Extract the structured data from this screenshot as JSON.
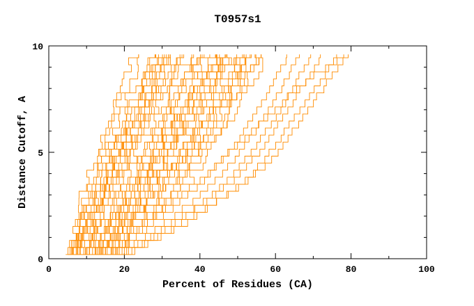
{
  "chart_data": {
    "type": "line",
    "title": "T0957s1",
    "xlabel": "Percent of Residues (CA)",
    "ylabel": "Distance Cutoff, A",
    "xlim": [
      0,
      100
    ],
    "ylim": [
      0,
      10
    ],
    "x_ticks": [
      0,
      20,
      40,
      60,
      80,
      100
    ],
    "x_minor_ticks": [
      10,
      30,
      50,
      70,
      90
    ],
    "y_ticks": [
      0,
      5,
      10
    ],
    "y_minor_ticks": [
      1,
      2,
      3,
      4,
      6,
      7,
      8,
      9
    ],
    "grid": false,
    "legend_position": "none",
    "background": "#ffffff",
    "series_color": "#ff8c00",
    "cutoffs": [
      0.2,
      1,
      2,
      3,
      4,
      5,
      6,
      7,
      8,
      9,
      9.6
    ],
    "series": [
      {
        "x": [
          5,
          6,
          7,
          9,
          11,
          13,
          15,
          17,
          19,
          21,
          23
        ]
      },
      {
        "x": [
          5,
          6,
          8,
          10,
          12,
          14,
          16,
          18,
          20,
          23,
          25
        ]
      },
      {
        "x": [
          6,
          7,
          9,
          11,
          13,
          15,
          17,
          19,
          22,
          25,
          27
        ]
      },
      {
        "x": [
          6,
          8,
          10,
          12,
          14,
          16,
          18,
          21,
          24,
          26,
          28
        ]
      },
      {
        "x": [
          7,
          8,
          10,
          13,
          15,
          17,
          19,
          22,
          25,
          27,
          29
        ]
      },
      {
        "x": [
          7,
          9,
          11,
          13,
          16,
          18,
          20,
          23,
          26,
          28,
          30
        ]
      },
      {
        "x": [
          8,
          9,
          12,
          14,
          16,
          19,
          21,
          24,
          27,
          29,
          31
        ]
      },
      {
        "x": [
          8,
          10,
          12,
          15,
          17,
          19,
          22,
          25,
          28,
          30,
          32
        ]
      },
      {
        "x": [
          6,
          7,
          9,
          12,
          14,
          16,
          19,
          21,
          24,
          27,
          30
        ]
      },
      {
        "x": [
          5,
          7,
          9,
          11,
          14,
          17,
          20,
          23,
          26,
          29,
          31
        ]
      },
      {
        "x": [
          7,
          8,
          11,
          14,
          17,
          20,
          22,
          25,
          28,
          31,
          33
        ]
      },
      {
        "x": [
          6,
          8,
          11,
          13,
          15,
          18,
          21,
          24,
          27,
          30,
          32
        ]
      },
      {
        "x": [
          8,
          10,
          13,
          16,
          18,
          21,
          23,
          26,
          29,
          32,
          34
        ]
      },
      {
        "x": [
          7,
          9,
          12,
          15,
          18,
          21,
          24,
          27,
          30,
          33,
          35
        ]
      },
      {
        "x": [
          9,
          11,
          13,
          16,
          19,
          22,
          25,
          28,
          31,
          34,
          36
        ]
      },
      {
        "x": [
          9,
          11,
          14,
          17,
          20,
          23,
          26,
          29,
          32,
          35,
          37
        ]
      },
      {
        "x": [
          10,
          12,
          15,
          18,
          21,
          24,
          27,
          30,
          33,
          36,
          38
        ]
      },
      {
        "x": [
          10,
          13,
          16,
          19,
          22,
          25,
          28,
          31,
          34,
          37,
          39
        ]
      },
      {
        "x": [
          11,
          13,
          17,
          20,
          23,
          26,
          29,
          32,
          35,
          38,
          40
        ]
      },
      {
        "x": [
          11,
          14,
          17,
          21,
          24,
          27,
          30,
          33,
          36,
          39,
          41
        ]
      },
      {
        "x": [
          12,
          14,
          18,
          21,
          25,
          28,
          31,
          34,
          37,
          40,
          42
        ]
      },
      {
        "x": [
          12,
          15,
          18,
          22,
          25,
          29,
          32,
          35,
          38,
          41,
          43
        ]
      },
      {
        "x": [
          13,
          15,
          19,
          22,
          26,
          29,
          33,
          36,
          39,
          42,
          44
        ]
      },
      {
        "x": [
          13,
          16,
          19,
          23,
          27,
          30,
          33,
          37,
          40,
          43,
          45
        ]
      },
      {
        "x": [
          14,
          16,
          20,
          24,
          27,
          31,
          34,
          38,
          41,
          44,
          46
        ]
      },
      {
        "x": [
          14,
          17,
          21,
          24,
          28,
          32,
          35,
          38,
          42,
          45,
          47
        ]
      },
      {
        "x": [
          15,
          17,
          21,
          25,
          29,
          32,
          36,
          39,
          43,
          46,
          48
        ]
      },
      {
        "x": [
          15,
          18,
          22,
          26,
          30,
          33,
          37,
          40,
          44,
          47,
          49
        ]
      },
      {
        "x": [
          16,
          18,
          22,
          26,
          30,
          34,
          38,
          41,
          45,
          48,
          50
        ]
      },
      {
        "x": [
          16,
          19,
          23,
          27,
          31,
          35,
          38,
          42,
          46,
          49,
          51
        ]
      },
      {
        "x": [
          12,
          15,
          19,
          23,
          26,
          30,
          34,
          37,
          41,
          44,
          47
        ]
      },
      {
        "x": [
          10,
          13,
          17,
          21,
          25,
          28,
          32,
          36,
          39,
          43,
          46
        ]
      },
      {
        "x": [
          9,
          12,
          16,
          20,
          24,
          28,
          31,
          35,
          39,
          42,
          45
        ]
      },
      {
        "x": [
          14,
          18,
          23,
          28,
          32,
          36,
          39,
          43,
          47,
          50,
          52
        ]
      },
      {
        "x": [
          15,
          19,
          24,
          29,
          33,
          37,
          41,
          44,
          48,
          51,
          53
        ]
      },
      {
        "x": [
          16,
          20,
          25,
          30,
          34,
          38,
          42,
          46,
          49,
          52,
          54
        ]
      },
      {
        "x": [
          17,
          21,
          26,
          31,
          35,
          39,
          43,
          47,
          50,
          53,
          55
        ]
      },
      {
        "x": [
          13,
          17,
          22,
          27,
          32,
          36,
          40,
          44,
          48,
          51,
          54
        ]
      },
      {
        "x": [
          12,
          16,
          21,
          26,
          31,
          35,
          40,
          44,
          48,
          52,
          55
        ]
      },
      {
        "x": [
          15,
          20,
          26,
          31,
          36,
          40,
          44,
          48,
          51,
          54,
          56
        ]
      },
      {
        "x": [
          16,
          21,
          27,
          33,
          38,
          42,
          46,
          49,
          52,
          55,
          57
        ]
      },
      {
        "x": [
          16,
          22,
          29,
          36,
          42,
          47,
          51,
          55,
          58,
          61,
          63
        ]
      },
      {
        "x": [
          17,
          24,
          32,
          39,
          45,
          50,
          54,
          58,
          61,
          64,
          66
        ]
      },
      {
        "x": [
          18,
          26,
          35,
          42,
          48,
          53,
          57,
          61,
          64,
          67,
          69
        ]
      },
      {
        "x": [
          17,
          25,
          34,
          43,
          50,
          55,
          59,
          63,
          66,
          70,
          72
        ]
      },
      {
        "x": [
          19,
          28,
          38,
          46,
          53,
          58,
          62,
          66,
          70,
          74,
          76
        ]
      },
      {
        "x": [
          18,
          27,
          37,
          46,
          54,
          60,
          64,
          68,
          72,
          76,
          79
        ]
      },
      {
        "x": [
          15,
          20,
          27,
          34,
          41,
          47,
          53,
          59,
          65,
          72,
          78
        ]
      }
    ]
  }
}
